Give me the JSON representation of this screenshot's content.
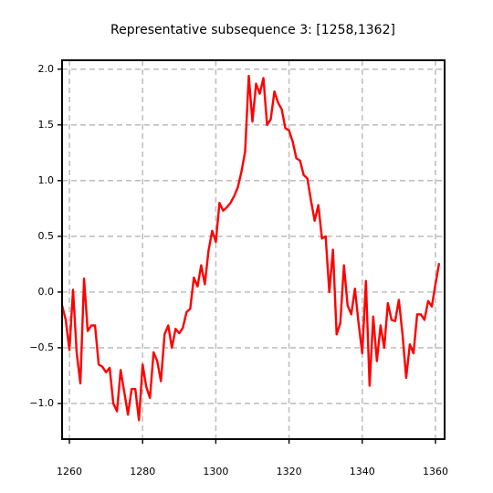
{
  "chart_data": {
    "type": "line",
    "title": "Representative subsequence 3: [1258,1362]",
    "x": [
      1258,
      1259,
      1260,
      1261,
      1262,
      1263,
      1264,
      1265,
      1266,
      1267,
      1268,
      1269,
      1270,
      1271,
      1272,
      1273,
      1274,
      1275,
      1276,
      1277,
      1278,
      1279,
      1280,
      1281,
      1282,
      1283,
      1284,
      1285,
      1286,
      1287,
      1288,
      1289,
      1290,
      1291,
      1292,
      1293,
      1294,
      1295,
      1296,
      1297,
      1298,
      1299,
      1300,
      1301,
      1302,
      1303,
      1304,
      1305,
      1306,
      1307,
      1308,
      1309,
      1310,
      1311,
      1312,
      1313,
      1314,
      1315,
      1316,
      1317,
      1318,
      1319,
      1320,
      1321,
      1322,
      1323,
      1324,
      1325,
      1326,
      1327,
      1328,
      1329,
      1330,
      1331,
      1332,
      1333,
      1334,
      1335,
      1336,
      1337,
      1338,
      1339,
      1340,
      1341,
      1342,
      1343,
      1344,
      1345,
      1346,
      1347,
      1348,
      1349,
      1350,
      1351,
      1352,
      1353,
      1354,
      1355,
      1356,
      1357,
      1358,
      1359,
      1360,
      1361
    ],
    "values": [
      -0.12,
      -0.25,
      -0.52,
      0.02,
      -0.55,
      -0.82,
      0.12,
      -0.35,
      -0.3,
      -0.3,
      -0.65,
      -0.67,
      -0.72,
      -0.68,
      -1.0,
      -1.07,
      -0.7,
      -0.9,
      -1.1,
      -0.87,
      -0.87,
      -1.15,
      -0.65,
      -0.85,
      -0.95,
      -0.54,
      -0.62,
      -0.8,
      -0.38,
      -0.3,
      -0.5,
      -0.33,
      -0.37,
      -0.32,
      -0.18,
      -0.15,
      0.13,
      0.05,
      0.24,
      0.07,
      0.37,
      0.55,
      0.45,
      0.8,
      0.73,
      0.76,
      0.8,
      0.86,
      0.94,
      1.08,
      1.26,
      1.94,
      1.53,
      1.87,
      1.78,
      1.92,
      1.5,
      1.55,
      1.8,
      1.7,
      1.64,
      1.47,
      1.45,
      1.35,
      1.2,
      1.18,
      1.05,
      1.02,
      0.82,
      0.64,
      0.78,
      0.48,
      0.5,
      0.0,
      0.38,
      -0.38,
      -0.28,
      0.24,
      -0.12,
      -0.2,
      0.03,
      -0.28,
      -0.55,
      0.1,
      -0.84,
      -0.22,
      -0.62,
      -0.3,
      -0.5,
      -0.1,
      -0.25,
      -0.26,
      -0.07,
      -0.38,
      -0.77,
      -0.47,
      -0.55,
      -0.2,
      -0.2,
      -0.25,
      -0.08,
      -0.13,
      0.07,
      0.26
    ],
    "color": "#ff0000",
    "xlim": [
      1258,
      1362.5
    ],
    "ylim": [
      -1.32,
      2.08
    ],
    "xticks": [
      1260,
      1280,
      1300,
      1320,
      1340,
      1360
    ],
    "yticks": [
      {
        "value": -1,
        "label": "−1.0"
      },
      {
        "value": -0.5,
        "label": "−0.5"
      },
      {
        "value": 0,
        "label": "0.0"
      },
      {
        "value": 0.5,
        "label": "0.5"
      },
      {
        "value": 1,
        "label": "1.0"
      },
      {
        "value": 1.5,
        "label": "1.5"
      },
      {
        "value": 2,
        "label": "2.0"
      }
    ],
    "grid": true
  }
}
